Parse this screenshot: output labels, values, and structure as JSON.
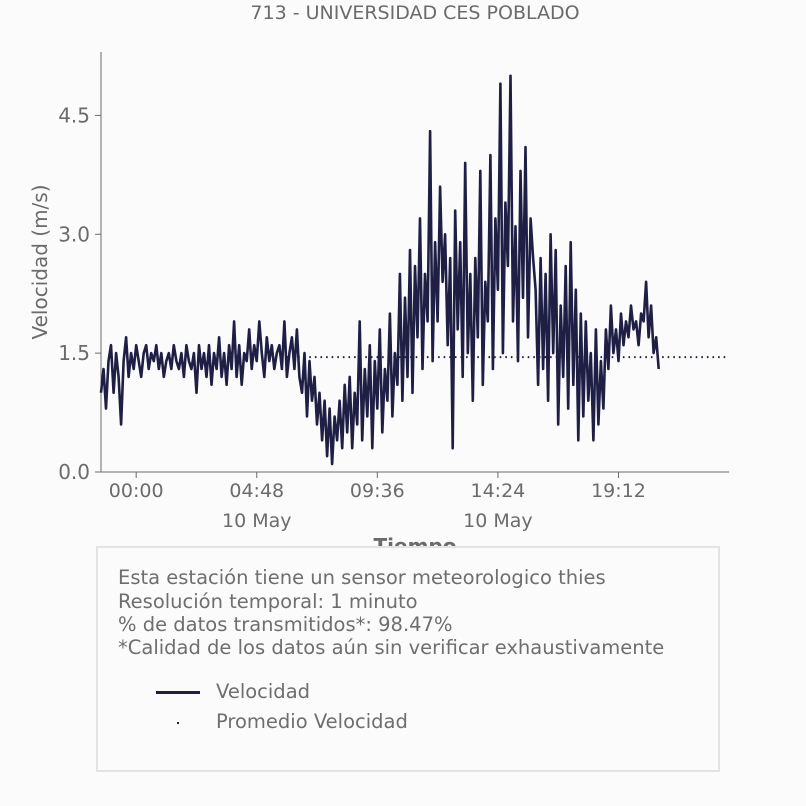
{
  "chart_data": {
    "type": "line",
    "title": "713 - UNIVERSIDAD CES POBLADO",
    "xlabel": "Tiempo",
    "ylabel": "Velocidad (m/s)",
    "ylim": [
      0,
      5.3
    ],
    "yticks": [
      {
        "value": 0.0,
        "label": "0.0"
      },
      {
        "value": 1.5,
        "label": "1.5"
      },
      {
        "value": 3.0,
        "label": "3.0"
      },
      {
        "value": 4.5,
        "label": "4.5"
      }
    ],
    "xlim": [
      -1.4,
      23.6
    ],
    "xticks": [
      {
        "value": 0.0,
        "label": "00:00",
        "sublabel": ""
      },
      {
        "value": 4.8,
        "label": "04:48",
        "sublabel": "10 May"
      },
      {
        "value": 9.6,
        "label": "09:36",
        "sublabel": ""
      },
      {
        "value": 14.4,
        "label": "14:24",
        "sublabel": "10 May"
      },
      {
        "value": 19.2,
        "label": "19:12",
        "sublabel": ""
      }
    ],
    "grid": false,
    "series": [
      {
        "name": "Velocidad",
        "color": "#1f1f45",
        "style": "solid",
        "x_start": -1.4,
        "x_step": 0.1,
        "values": [
          1.0,
          1.3,
          0.8,
          1.4,
          1.6,
          1.0,
          1.5,
          1.2,
          0.6,
          1.4,
          1.7,
          1.2,
          1.5,
          1.3,
          1.6,
          1.4,
          1.2,
          1.5,
          1.6,
          1.3,
          1.5,
          1.4,
          1.6,
          1.3,
          1.5,
          1.2,
          1.4,
          1.5,
          1.3,
          1.6,
          1.4,
          1.3,
          1.5,
          1.2,
          1.6,
          1.4,
          1.3,
          1.5,
          1.0,
          1.6,
          1.3,
          1.5,
          1.2,
          1.6,
          1.1,
          1.5,
          1.3,
          1.7,
          1.2,
          1.5,
          1.1,
          1.6,
          1.3,
          1.9,
          1.2,
          1.6,
          1.1,
          1.5,
          1.4,
          1.8,
          1.3,
          1.6,
          1.4,
          1.9,
          1.5,
          1.2,
          1.7,
          1.4,
          1.6,
          1.3,
          1.5,
          1.6,
          1.3,
          1.9,
          1.2,
          1.5,
          1.7,
          1.3,
          1.8,
          1.2,
          1.0,
          1.5,
          0.7,
          1.4,
          0.9,
          1.2,
          0.6,
          1.0,
          0.4,
          0.9,
          0.2,
          0.8,
          0.1,
          0.7,
          0.4,
          0.9,
          0.3,
          1.1,
          0.5,
          1.2,
          0.3,
          1.0,
          0.6,
          1.9,
          0.4,
          1.3,
          0.7,
          1.6,
          0.3,
          1.4,
          0.8,
          1.8,
          0.5,
          1.3,
          0.9,
          2.0,
          0.7,
          1.5,
          1.1,
          2.5,
          0.9,
          2.2,
          1.2,
          2.8,
          1.0,
          2.6,
          1.7,
          3.2,
          1.3,
          2.5,
          1.9,
          4.3,
          1.4,
          2.9,
          1.9,
          3.6,
          2.4,
          3.0,
          1.6,
          2.7,
          0.3,
          3.3,
          1.8,
          2.9,
          1.2,
          3.9,
          1.5,
          2.5,
          0.9,
          2.7,
          1.7,
          3.8,
          1.1,
          2.4,
          1.9,
          4.0,
          1.3,
          3.2,
          2.3,
          4.9,
          1.5,
          3.4,
          2.6,
          5.0,
          1.9,
          3.1,
          1.4,
          3.8,
          2.2,
          4.1,
          1.7,
          3.2,
          2.7,
          2.3,
          1.1,
          2.7,
          1.3,
          2.5,
          0.9,
          3.0,
          1.5,
          2.8,
          0.6,
          2.1,
          1.2,
          2.6,
          0.8,
          2.9,
          1.1,
          2.3,
          0.4,
          2.0,
          0.7,
          1.9,
          0.9,
          1.5,
          0.4,
          1.8,
          0.6,
          1.4,
          0.8,
          1.8,
          1.3,
          2.1,
          1.5,
          1.8,
          1.4,
          2.0,
          1.6,
          1.9,
          1.7,
          2.1,
          1.8,
          1.9,
          1.6,
          2.0,
          1.9,
          2.4,
          1.7,
          2.1,
          1.5,
          1.7,
          1.3
        ]
      },
      {
        "name": "Promedio Velocidad",
        "color": "#1f1f45",
        "style": "dotted",
        "x_range": [
          6.0,
          23.6
        ],
        "value": 1.45
      }
    ]
  },
  "info": {
    "line1": "Esta estación tiene un sensor meteorologico thies",
    "line2": "Resolución temporal: 1 minuto",
    "line3": "% de datos transmitidos*: 98.47%",
    "line4": "*Calidad de los datos aún sin verificar exhaustivamente"
  },
  "legend": {
    "entries": [
      "Velocidad",
      "Promedio Velocidad"
    ]
  },
  "colors": {
    "series": "#1f1f45",
    "text": "#6b6b6b",
    "box_border": "#e3e3e3",
    "background": "#fbfbfb"
  }
}
